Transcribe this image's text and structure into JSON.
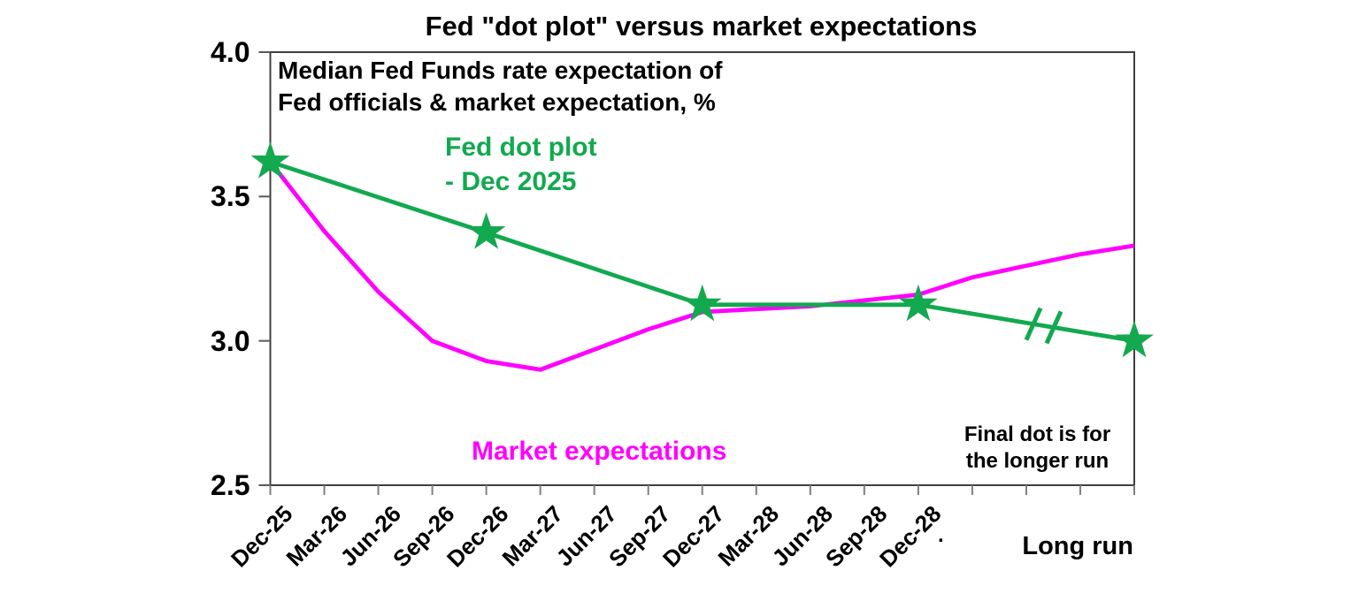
{
  "chart_data": {
    "type": "line",
    "title": "Fed \"dot plot\" versus market expectations",
    "subtitle_line1": "Median Fed Funds rate expectation of",
    "subtitle_line2": "Fed officials & market expectation, %",
    "ylim": [
      2.5,
      4.0
    ],
    "y_tick_labels": [
      "4.0",
      "3.5",
      "3.0",
      "2.5"
    ],
    "y_tick_values": [
      4.0,
      3.5,
      3.0,
      2.5
    ],
    "x_tick_count": 17,
    "x_tick_labels": [
      "Dec-25",
      "Mar-26",
      "Jun-26",
      "Sep-26",
      "Dec-26",
      "Mar-27",
      "Jun-27",
      "Sep-27",
      "Dec-27",
      "Mar-28",
      "Jun-28",
      "Sep-28",
      "Dec-28"
    ],
    "x_last_category": "Long run",
    "grid": false,
    "legend_position": "labels annotated on chart",
    "series": [
      {
        "name": "Fed dot plot - Dec 2025",
        "color": "#12A94F",
        "marker": "star",
        "points": [
          {
            "x": 0,
            "label": "Dec-25",
            "value": 3.62
          },
          {
            "x": 4,
            "label": "Dec-26",
            "value": 3.375
          },
          {
            "x": 8,
            "label": "Dec-27",
            "value": 3.125
          },
          {
            "x": 12,
            "label": "Dec-28",
            "value": 3.125
          },
          {
            "x": 16,
            "label": "Long run",
            "value": 3.0
          }
        ],
        "break_marks_between": [
          "Dec-28",
          "Long run"
        ]
      },
      {
        "name": "Market expectations",
        "color": "#FF00FF",
        "marker": "none",
        "points": [
          {
            "x": 0,
            "value": 3.62
          },
          {
            "x": 1,
            "value": 3.38
          },
          {
            "x": 2,
            "value": 3.17
          },
          {
            "x": 3,
            "value": 3.0
          },
          {
            "x": 4,
            "value": 2.93
          },
          {
            "x": 5,
            "value": 2.9
          },
          {
            "x": 6,
            "value": 2.97
          },
          {
            "x": 7,
            "value": 3.04
          },
          {
            "x": 8,
            "value": 3.1
          },
          {
            "x": 9,
            "value": 3.11
          },
          {
            "x": 10,
            "value": 3.12
          },
          {
            "x": 11,
            "value": 3.14
          },
          {
            "x": 12,
            "value": 3.16
          },
          {
            "x": 13,
            "value": 3.22
          },
          {
            "x": 14,
            "value": 3.26
          },
          {
            "x": 15,
            "value": 3.3
          },
          {
            "x": 16,
            "value": 3.33
          }
        ]
      }
    ],
    "annotations": {
      "fed_label_line1": "Fed dot plot",
      "fed_label_line2": "- Dec 2025",
      "market_label": "Market expectations",
      "final_dot_line1": "Final dot is for",
      "final_dot_line2": "the longer run",
      "long_run_label": "Long run",
      "extra_tick_label": "."
    }
  }
}
